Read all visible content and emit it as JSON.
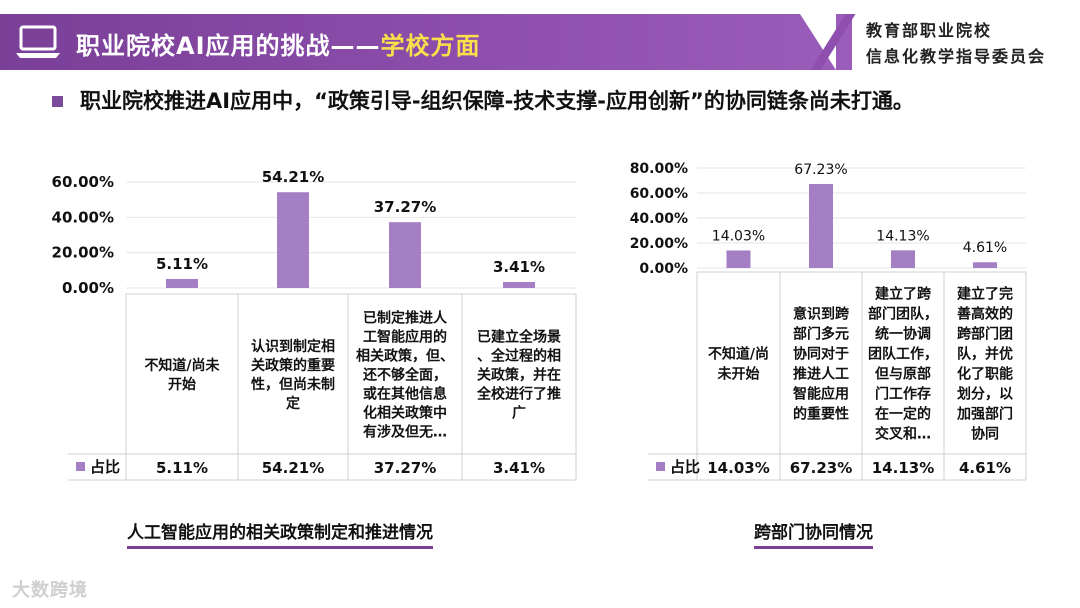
{
  "header": {
    "title_main": "职业院校AI应用的挑战——",
    "title_highlight": "学校方面",
    "org_line1": "教育部职业院校",
    "org_line2": "信息化教学指导委员会"
  },
  "lead_text": "职业院校推进AI应用中，“政策引导-组织保障-技术支撑-应用创新”的协同链条尚未打通。",
  "colors": {
    "bar": "#a47fc4",
    "banner": "#7a3f97",
    "highlight": "#f7e04a"
  },
  "chart_data": [
    {
      "type": "bar",
      "title": "人工智能应用的相关政策制定和推进情况",
      "categories": [
        "不知道/尚未开始",
        "认识到制定相关政策的重要性，但尚未制定",
        "已制定推进人工智能应用的相关政策，但、还不够全面，或在其他信息化相关政策中有涉及但无…",
        "已建立全场景、全过程的相关政策，并在全校进行了推广"
      ],
      "category_lines": [
        [
          "不知道/尚未",
          "开始"
        ],
        [
          "认识到制定相",
          "关政策的重要",
          "性，但尚未制",
          "定"
        ],
        [
          "已制定推进人",
          "工智能应用的",
          "相关政策，但、",
          "还不够全面，",
          "或在其他信息",
          "化相关政策中",
          "有涉及但无…"
        ],
        [
          "已建立全场景",
          "、全过程的相",
          "关政策，并在",
          "全校进行了推",
          "广"
        ]
      ],
      "series": [
        {
          "name": "占比",
          "values": [
            5.11,
            54.21,
            37.27,
            3.41
          ]
        }
      ],
      "data_labels": [
        "5.11%",
        "54.21%",
        "37.27%",
        "3.41%"
      ],
      "y_ticks": [
        "60.00%",
        "40.00%",
        "20.00%",
        "0.00%"
      ],
      "ylim": [
        0,
        60
      ],
      "legend": "data-table"
    },
    {
      "type": "bar",
      "title": "跨部门协同情况",
      "categories": [
        "不知道/尚未开始",
        "意识到跨部门多元协同对于推进人工智能应用的重要性",
        "建立了跨部门团队，统一协调团队工作，但与原部门工作存在一定的交叉和…",
        "建立了完善高效的跨部门团队，并优化了职能划分，以加强部门协同"
      ],
      "category_lines": [
        [
          "不知道/尚",
          "未开始"
        ],
        [
          "意识到跨",
          "部门多元",
          "协同对于",
          "推进人工",
          "智能应用",
          "的重要性"
        ],
        [
          "建立了跨",
          "部门团队，",
          "统一协调",
          "团队工作，",
          "但与原部",
          "门工作存",
          "在一定的",
          "交叉和…"
        ],
        [
          "建立了完",
          "善高效的",
          "跨部门团",
          "队，并优",
          "化了职能",
          "划分，以",
          "加强部门",
          "协同"
        ]
      ],
      "series": [
        {
          "name": "占比",
          "values": [
            14.03,
            67.23,
            14.13,
            4.61
          ]
        }
      ],
      "data_labels": [
        "14.03%",
        "67.23%",
        "14.13%",
        "4.61%"
      ],
      "y_ticks": [
        "80.00%",
        "60.00%",
        "40.00%",
        "20.00%",
        "0.00%"
      ],
      "ylim": [
        0,
        80
      ],
      "legend": "data-table"
    }
  ],
  "watermark": "大数跨境"
}
